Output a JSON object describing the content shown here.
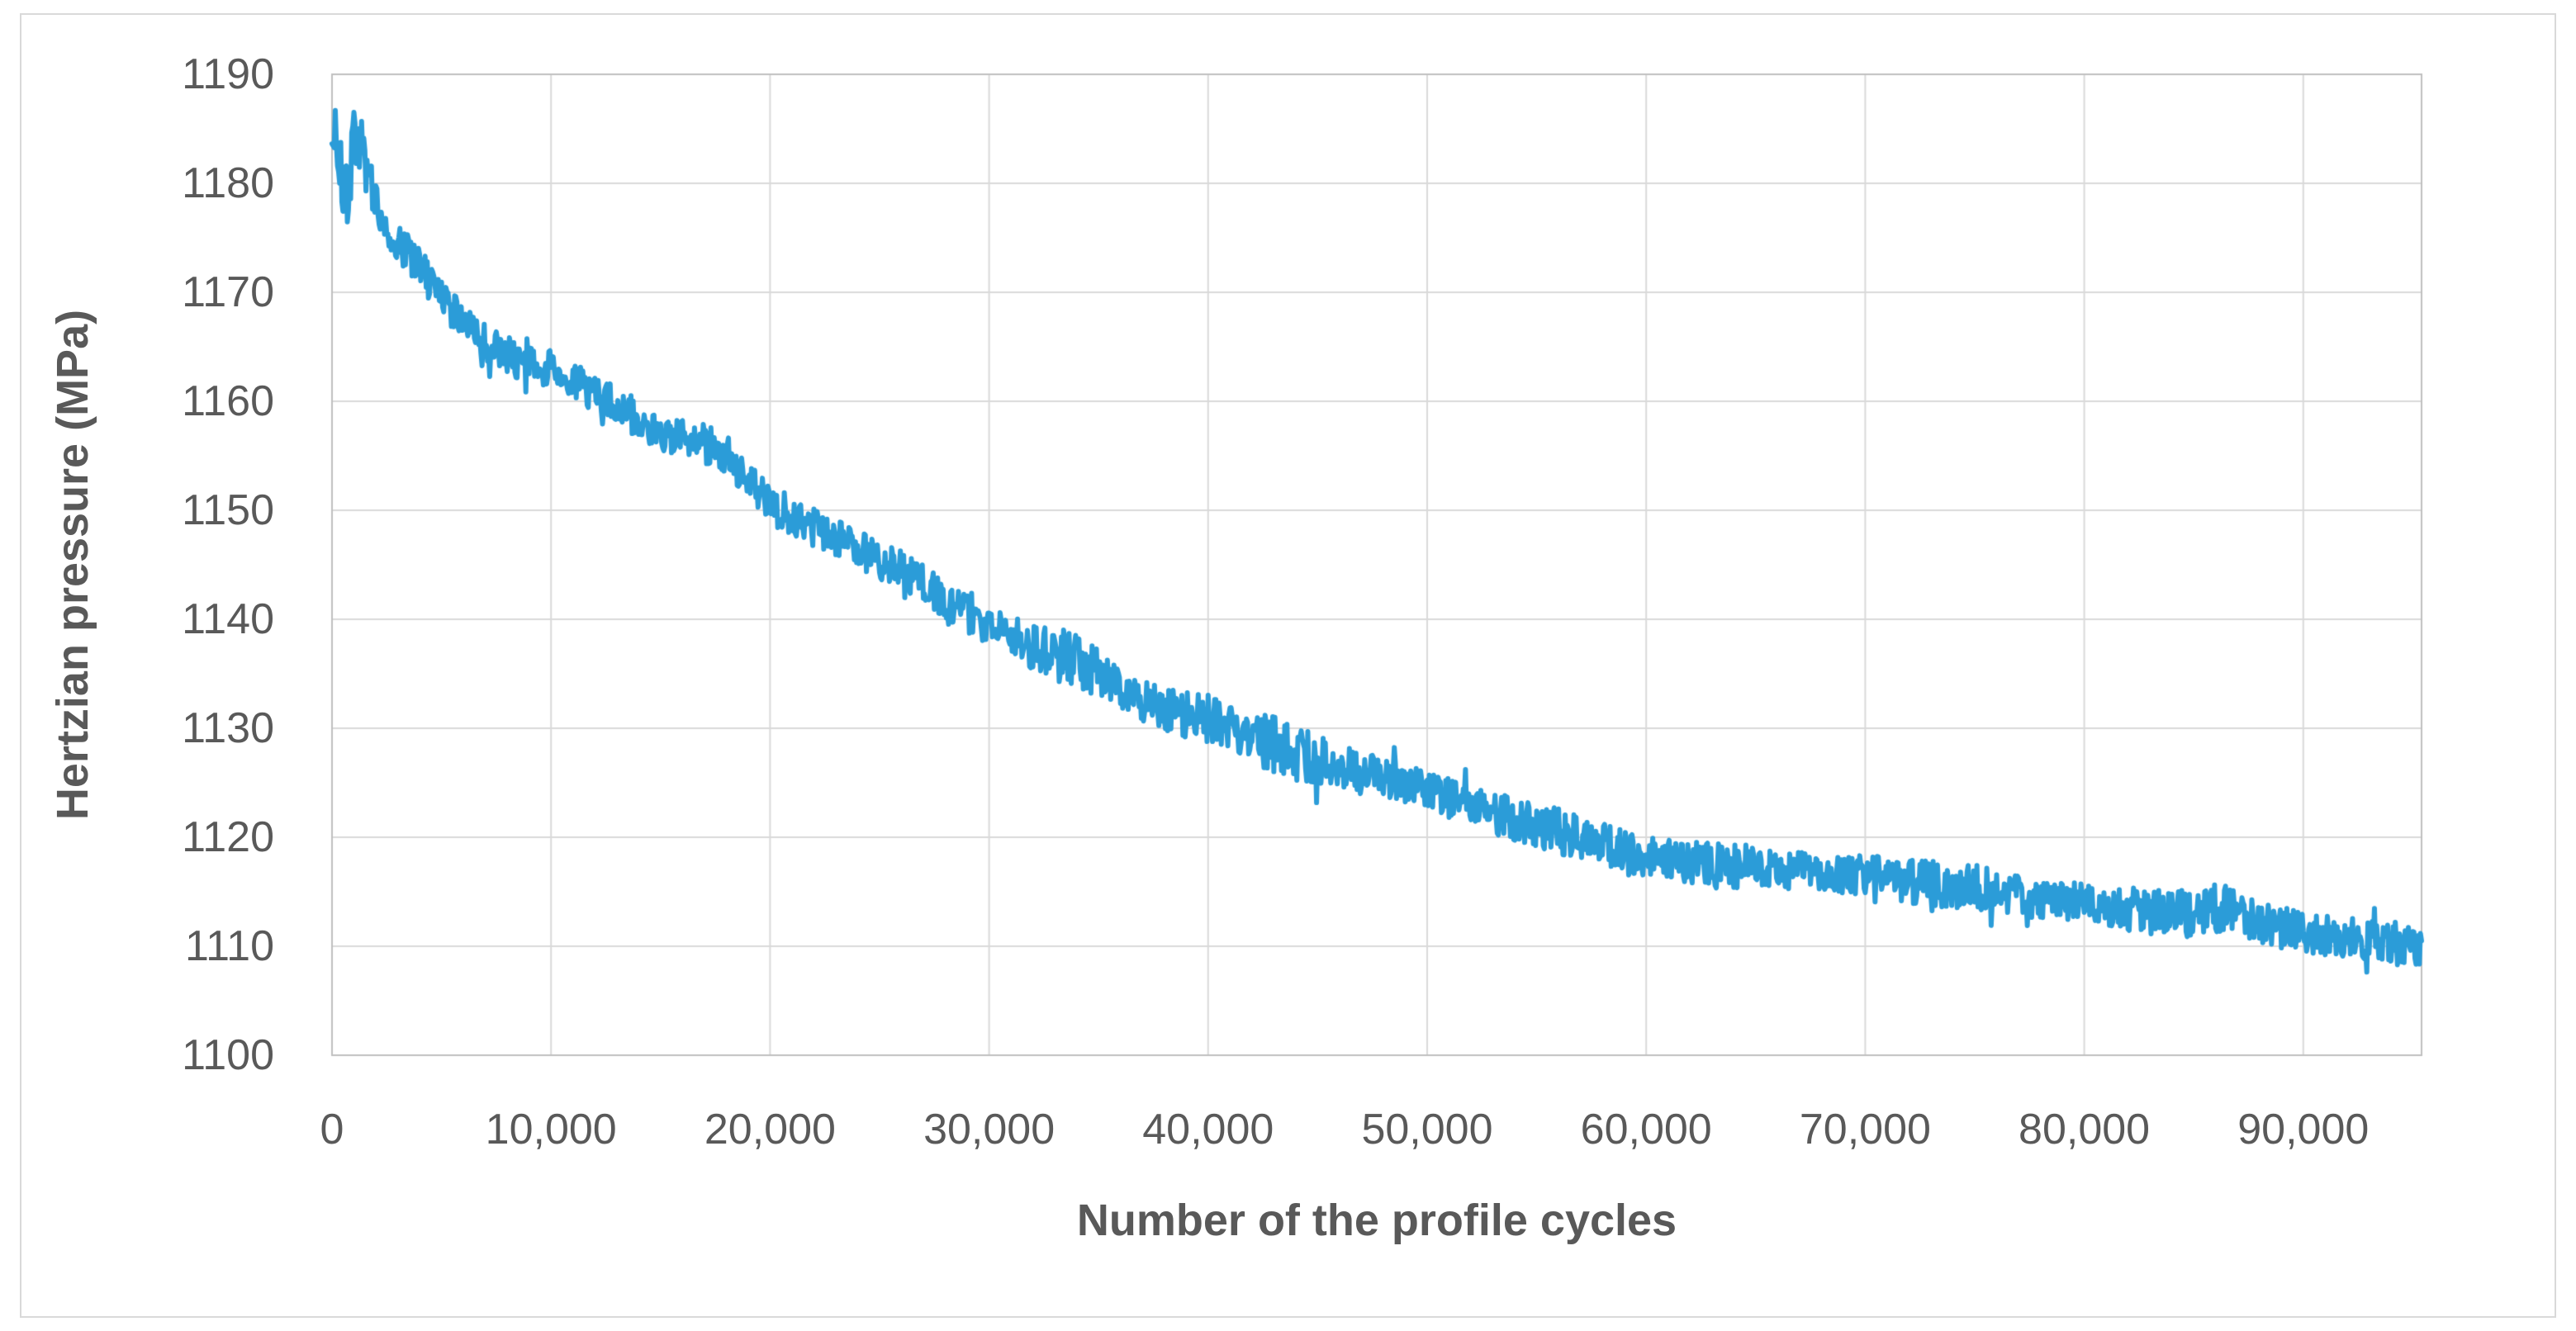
{
  "figure": {
    "background": "#ffffff",
    "border_color": "#d9d9d9"
  },
  "style": {
    "gridline_color": "#d9d9d9",
    "frame_color": "#bfbfbf",
    "label_color": "#595959",
    "series_color": "#2b9cd8"
  },
  "chart_data": {
    "type": "line",
    "title": "",
    "xlabel": "Number of the profile cycles",
    "ylabel": "Hertzian pressure (MPa)",
    "xlim": [
      0,
      95400
    ],
    "ylim": [
      1100,
      1190
    ],
    "grid": true,
    "legend": false,
    "x_tick_values": [
      0,
      10000,
      20000,
      30000,
      40000,
      50000,
      60000,
      70000,
      80000,
      90000
    ],
    "x_tick_labels": [
      "0",
      "10,000",
      "20,000",
      "30,000",
      "40,000",
      "50,000",
      "60,000",
      "70,000",
      "80,000",
      "90,000"
    ],
    "y_tick_values": [
      1100,
      1110,
      1120,
      1130,
      1140,
      1150,
      1160,
      1170,
      1180,
      1190
    ],
    "y_tick_labels": [
      "1100",
      "1110",
      "1120",
      "1130",
      "1140",
      "1150",
      "1160",
      "1170",
      "1180",
      "1190"
    ],
    "series": [
      {
        "name": "Hertzian pressure",
        "color": "#2b9cd8",
        "line_width": 6,
        "points_step_cycles": 50,
        "noise_seed": 20,
        "trend_points": [
          [
            0,
            1181.5
          ],
          [
            150,
            1185.0
          ],
          [
            300,
            1182.5
          ],
          [
            500,
            1179.5
          ],
          [
            700,
            1178.5
          ],
          [
            900,
            1182.0
          ],
          [
            1100,
            1185.5
          ],
          [
            1300,
            1184.0
          ],
          [
            1600,
            1181.0
          ],
          [
            2000,
            1178.3
          ],
          [
            2500,
            1176.3
          ],
          [
            3000,
            1174.7
          ],
          [
            4000,
            1172.3
          ],
          [
            5000,
            1169.5
          ],
          [
            6000,
            1167.2
          ],
          [
            7000,
            1165.4
          ],
          [
            8000,
            1164.2
          ],
          [
            9000,
            1163.3
          ],
          [
            10000,
            1163.0
          ],
          [
            11000,
            1161.9
          ],
          [
            12000,
            1160.8
          ],
          [
            13000,
            1159.6
          ],
          [
            14000,
            1158.4
          ],
          [
            15000,
            1157.3
          ],
          [
            16000,
            1156.5
          ],
          [
            17000,
            1156.1
          ],
          [
            18000,
            1155.2
          ],
          [
            19000,
            1152.9
          ],
          [
            20000,
            1150.6
          ],
          [
            21000,
            1149.4
          ],
          [
            22000,
            1148.5
          ],
          [
            23000,
            1147.5
          ],
          [
            24000,
            1146.4
          ],
          [
            25000,
            1145.3
          ],
          [
            26000,
            1144.7
          ],
          [
            27000,
            1143.2
          ],
          [
            28000,
            1141.9
          ],
          [
            29000,
            1140.5
          ],
          [
            30000,
            1139.3
          ],
          [
            31000,
            1138.4
          ],
          [
            32000,
            1137.7
          ],
          [
            33000,
            1136.9
          ],
          [
            34000,
            1136.1
          ],
          [
            35000,
            1135.1
          ],
          [
            36000,
            1133.7
          ],
          [
            37000,
            1132.5
          ],
          [
            38000,
            1131.7
          ],
          [
            39000,
            1131.3
          ],
          [
            40000,
            1131.0
          ],
          [
            41000,
            1130.2
          ],
          [
            42000,
            1129.4
          ],
          [
            43000,
            1128.5
          ],
          [
            44000,
            1127.8
          ],
          [
            45000,
            1127.1
          ],
          [
            46000,
            1126.4
          ],
          [
            47000,
            1125.9
          ],
          [
            48000,
            1125.5
          ],
          [
            49000,
            1125.0
          ],
          [
            50000,
            1124.3
          ],
          [
            51000,
            1123.6
          ],
          [
            52000,
            1123.0
          ],
          [
            53000,
            1122.3
          ],
          [
            54000,
            1121.7
          ],
          [
            55000,
            1121.1
          ],
          [
            56000,
            1120.5
          ],
          [
            57000,
            1119.9
          ],
          [
            58000,
            1119.3
          ],
          [
            59000,
            1118.7
          ],
          [
            60000,
            1118.2
          ],
          [
            61000,
            1117.9
          ],
          [
            62000,
            1117.6
          ],
          [
            63000,
            1117.4
          ],
          [
            64000,
            1117.3
          ],
          [
            65000,
            1117.4
          ],
          [
            66000,
            1117.1
          ],
          [
            67000,
            1116.9
          ],
          [
            68000,
            1116.7
          ],
          [
            69000,
            1116.6
          ],
          [
            70000,
            1116.5
          ],
          [
            71000,
            1116.3
          ],
          [
            72000,
            1116.0
          ],
          [
            73000,
            1115.7
          ],
          [
            74000,
            1115.5
          ],
          [
            75000,
            1115.5
          ],
          [
            76000,
            1115.1
          ],
          [
            77000,
            1114.7
          ],
          [
            78000,
            1114.4
          ],
          [
            79000,
            1114.2
          ],
          [
            80000,
            1114.0
          ],
          [
            81000,
            1113.7
          ],
          [
            82000,
            1113.4
          ],
          [
            83000,
            1113.2
          ],
          [
            84000,
            1113.0
          ],
          [
            85000,
            1112.9
          ],
          [
            86000,
            1113.4
          ],
          [
            86600,
            1113.7
          ],
          [
            87200,
            1112.9
          ],
          [
            88000,
            1112.2
          ],
          [
            89000,
            1111.7
          ],
          [
            90000,
            1111.3
          ],
          [
            91000,
            1111.0
          ],
          [
            92000,
            1110.8
          ],
          [
            93000,
            1110.5
          ],
          [
            94000,
            1110.3
          ],
          [
            95000,
            1110.1
          ],
          [
            95400,
            1110.0
          ]
        ],
        "noise_amplitude_points": [
          [
            0,
            4.2
          ],
          [
            500,
            2.6
          ],
          [
            900,
            4.0
          ],
          [
            1400,
            2.6
          ],
          [
            3000,
            1.8
          ],
          [
            10000,
            1.7
          ],
          [
            20000,
            1.8
          ],
          [
            30000,
            1.8
          ],
          [
            33500,
            2.6
          ],
          [
            36000,
            1.8
          ],
          [
            44000,
            2.7
          ],
          [
            46000,
            2.0
          ],
          [
            50000,
            1.7
          ],
          [
            56000,
            2.2
          ],
          [
            60000,
            1.8
          ],
          [
            63000,
            2.2
          ],
          [
            66000,
            1.7
          ],
          [
            74000,
            2.2
          ],
          [
            80000,
            1.8
          ],
          [
            86000,
            2.3
          ],
          [
            90000,
            1.8
          ],
          [
            95400,
            2.0
          ]
        ]
      }
    ]
  }
}
